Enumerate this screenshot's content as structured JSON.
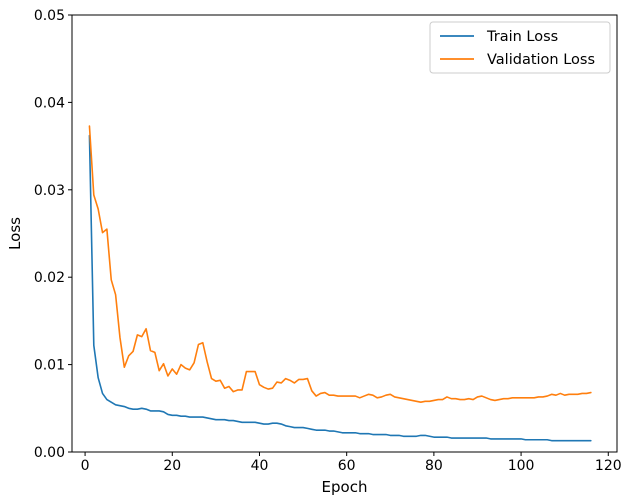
{
  "chart_data": {
    "type": "line",
    "xlabel": "Epoch",
    "ylabel": "Loss",
    "xlim": [
      -3,
      122
    ],
    "ylim": [
      0.0,
      0.05
    ],
    "xticks": [
      0,
      20,
      40,
      60,
      80,
      100,
      120
    ],
    "yticks": [
      0.0,
      0.01,
      0.02,
      0.03,
      0.04,
      0.05
    ],
    "xtick_labels": [
      "0",
      "20",
      "40",
      "60",
      "80",
      "100",
      "120"
    ],
    "ytick_labels": [
      "0.00",
      "0.01",
      "0.02",
      "0.03",
      "0.04",
      "0.05"
    ],
    "grid": false,
    "legend_position": "top-right",
    "x": [
      1,
      2,
      3,
      4,
      5,
      6,
      7,
      8,
      9,
      10,
      11,
      12,
      13,
      14,
      15,
      16,
      17,
      18,
      19,
      20,
      21,
      22,
      23,
      24,
      25,
      26,
      27,
      28,
      29,
      30,
      31,
      32,
      33,
      34,
      35,
      36,
      37,
      38,
      39,
      40,
      41,
      42,
      43,
      44,
      45,
      46,
      47,
      48,
      49,
      50,
      51,
      52,
      53,
      54,
      55,
      56,
      57,
      58,
      59,
      60,
      61,
      62,
      63,
      64,
      65,
      66,
      67,
      68,
      69,
      70,
      71,
      72,
      73,
      74,
      75,
      76,
      77,
      78,
      79,
      80,
      81,
      82,
      83,
      84,
      85,
      86,
      87,
      88,
      89,
      90,
      91,
      92,
      93,
      94,
      95,
      96,
      97,
      98,
      99,
      100,
      101,
      102,
      103,
      104,
      105,
      106,
      107,
      108,
      109,
      110,
      111,
      112,
      113,
      114,
      115,
      116
    ],
    "series": [
      {
        "name": "Train Loss",
        "color": "#1f77b4",
        "values": [
          0.0362,
          0.0122,
          0.0085,
          0.0067,
          0.006,
          0.0057,
          0.0054,
          0.0053,
          0.0052,
          0.005,
          0.0049,
          0.0049,
          0.005,
          0.0049,
          0.0047,
          0.0047,
          0.0047,
          0.0046,
          0.0043,
          0.0042,
          0.0042,
          0.0041,
          0.0041,
          0.004,
          0.004,
          0.004,
          0.004,
          0.0039,
          0.0038,
          0.0037,
          0.0037,
          0.0037,
          0.0036,
          0.0036,
          0.0035,
          0.0034,
          0.0034,
          0.0034,
          0.0034,
          0.0033,
          0.0032,
          0.0032,
          0.0033,
          0.0033,
          0.0032,
          0.003,
          0.0029,
          0.0028,
          0.0028,
          0.0028,
          0.0027,
          0.0026,
          0.0025,
          0.0025,
          0.0025,
          0.0024,
          0.0024,
          0.0023,
          0.0022,
          0.0022,
          0.0022,
          0.0022,
          0.0021,
          0.0021,
          0.0021,
          0.002,
          0.002,
          0.002,
          0.002,
          0.0019,
          0.0019,
          0.0019,
          0.0018,
          0.0018,
          0.0018,
          0.0018,
          0.0019,
          0.0019,
          0.0018,
          0.0017,
          0.0017,
          0.0017,
          0.0017,
          0.0016,
          0.0016,
          0.0016,
          0.0016,
          0.0016,
          0.0016,
          0.0016,
          0.0016,
          0.0016,
          0.0015,
          0.0015,
          0.0015,
          0.0015,
          0.0015,
          0.0015,
          0.0015,
          0.0015,
          0.0014,
          0.0014,
          0.0014,
          0.0014,
          0.0014,
          0.0014,
          0.0013,
          0.0013,
          0.0013,
          0.0013,
          0.0013,
          0.0013,
          0.0013,
          0.0013,
          0.0013,
          0.0013
        ]
      },
      {
        "name": "Validation Loss",
        "color": "#ff7f0e",
        "values": [
          0.0373,
          0.0294,
          0.0278,
          0.0251,
          0.0255,
          0.0197,
          0.018,
          0.0131,
          0.0097,
          0.011,
          0.0115,
          0.0134,
          0.0132,
          0.0141,
          0.0116,
          0.0114,
          0.0093,
          0.0101,
          0.0087,
          0.0095,
          0.0089,
          0.01,
          0.0096,
          0.0094,
          0.0102,
          0.0123,
          0.0125,
          0.0103,
          0.0084,
          0.0081,
          0.0082,
          0.0073,
          0.0075,
          0.0069,
          0.0071,
          0.0071,
          0.0092,
          0.0092,
          0.0092,
          0.0077,
          0.0074,
          0.0072,
          0.0073,
          0.008,
          0.0079,
          0.0084,
          0.0082,
          0.0079,
          0.0083,
          0.0083,
          0.0084,
          0.007,
          0.0064,
          0.0067,
          0.0068,
          0.0065,
          0.0065,
          0.0064,
          0.0064,
          0.0064,
          0.0064,
          0.0064,
          0.0062,
          0.0064,
          0.0066,
          0.0065,
          0.0062,
          0.0063,
          0.0065,
          0.0066,
          0.0063,
          0.0062,
          0.0061,
          0.006,
          0.0059,
          0.0058,
          0.0057,
          0.0058,
          0.0058,
          0.0059,
          0.006,
          0.006,
          0.0063,
          0.0061,
          0.0061,
          0.006,
          0.006,
          0.0061,
          0.006,
          0.0063,
          0.0064,
          0.0062,
          0.006,
          0.0059,
          0.006,
          0.0061,
          0.0061,
          0.0062,
          0.0062,
          0.0062,
          0.0062,
          0.0062,
          0.0062,
          0.0063,
          0.0063,
          0.0064,
          0.0066,
          0.0065,
          0.0067,
          0.0065,
          0.0066,
          0.0066,
          0.0066,
          0.0067,
          0.0067,
          0.0068
        ]
      }
    ]
  }
}
